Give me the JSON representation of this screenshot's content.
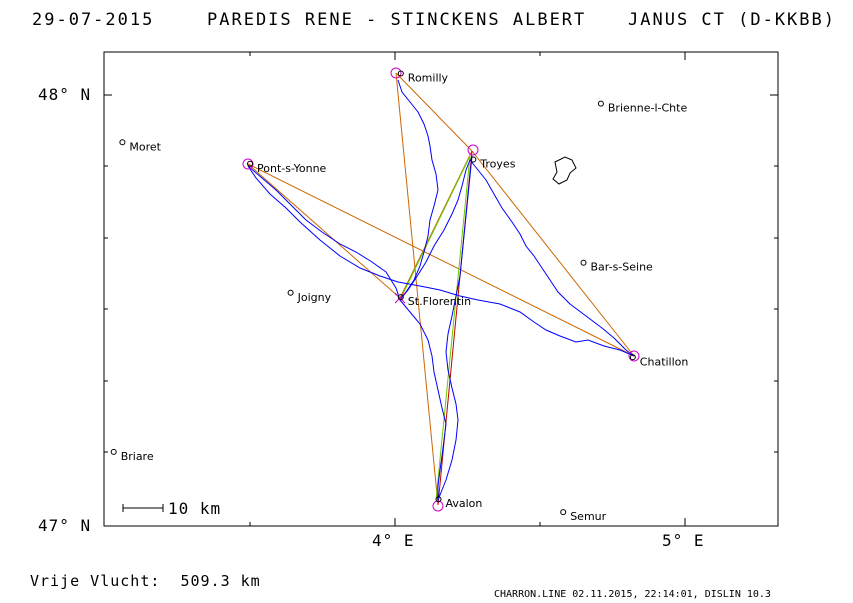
{
  "header": {
    "date": "29-07-2015",
    "pilots": "PAREDIS RENE - STINCKENS ALBERT",
    "glider": "JANUS CT (D-KKBB)"
  },
  "axes": {
    "lat_labels": [
      "48° N",
      "47° N"
    ],
    "lon_labels": [
      "4° E",
      "5° E"
    ]
  },
  "scale_bar": {
    "label": "10 km"
  },
  "towns": [
    {
      "name": "Romilly",
      "lon": 4.02,
      "lat": 48.05
    },
    {
      "name": "Brienne-l-Chte",
      "lon": 4.71,
      "lat": 47.98
    },
    {
      "name": "Moret",
      "lon": 3.06,
      "lat": 47.89
    },
    {
      "name": "Troyes",
      "lon": 4.27,
      "lat": 47.85
    },
    {
      "name": "Pont-s-Yonne",
      "lon": 3.5,
      "lat": 47.84
    },
    {
      "name": "Bar-s-Seine",
      "lon": 4.65,
      "lat": 47.61
    },
    {
      "name": "Joigny",
      "lon": 3.64,
      "lat": 47.54
    },
    {
      "name": "St.Florentin",
      "lon": 4.02,
      "lat": 47.53
    },
    {
      "name": "Chatillon",
      "lon": 4.82,
      "lat": 47.39
    },
    {
      "name": "Briare",
      "lon": 3.03,
      "lat": 47.17
    },
    {
      "name": "Avalon",
      "lon": 4.15,
      "lat": 47.06
    },
    {
      "name": "Semur",
      "lon": 4.58,
      "lat": 47.03
    }
  ],
  "footer": {
    "distance": "Vrije Vlucht:  509.3 km",
    "credit": "CHARRON.LINE 02.11.2015, 22:14:01, DISLIN 10.3"
  },
  "colors": {
    "track": "#0000ff",
    "task_leg": "#cc6600",
    "leg_alt": "#c00000",
    "leg_green": "#66cc00",
    "turnpoint": "#cc00cc"
  }
}
